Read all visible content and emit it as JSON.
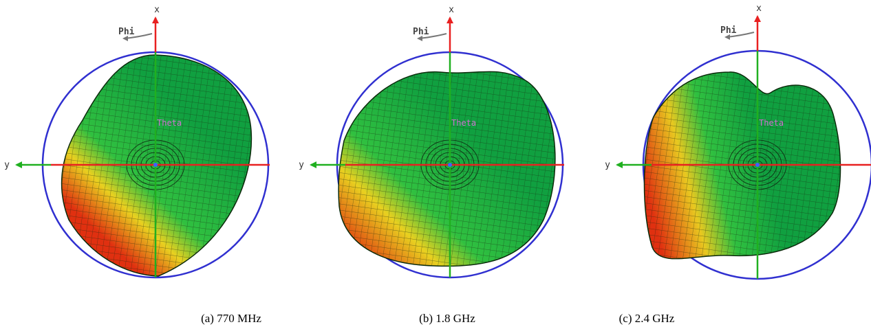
{
  "panels": [
    {
      "caption": "(a) 770 MHz",
      "labels": {
        "x": "x",
        "y": "y",
        "phi": "Phi",
        "theta": "Theta"
      }
    },
    {
      "caption": "(b) 1.8 GHz",
      "labels": {
        "x": "x",
        "y": "y",
        "phi": "Phi",
        "theta": "Theta"
      }
    },
    {
      "caption": "(c) 2.4 GHz",
      "labels": {
        "x": "x",
        "y": "y",
        "phi": "Phi",
        "theta": "Theta"
      }
    }
  ]
}
